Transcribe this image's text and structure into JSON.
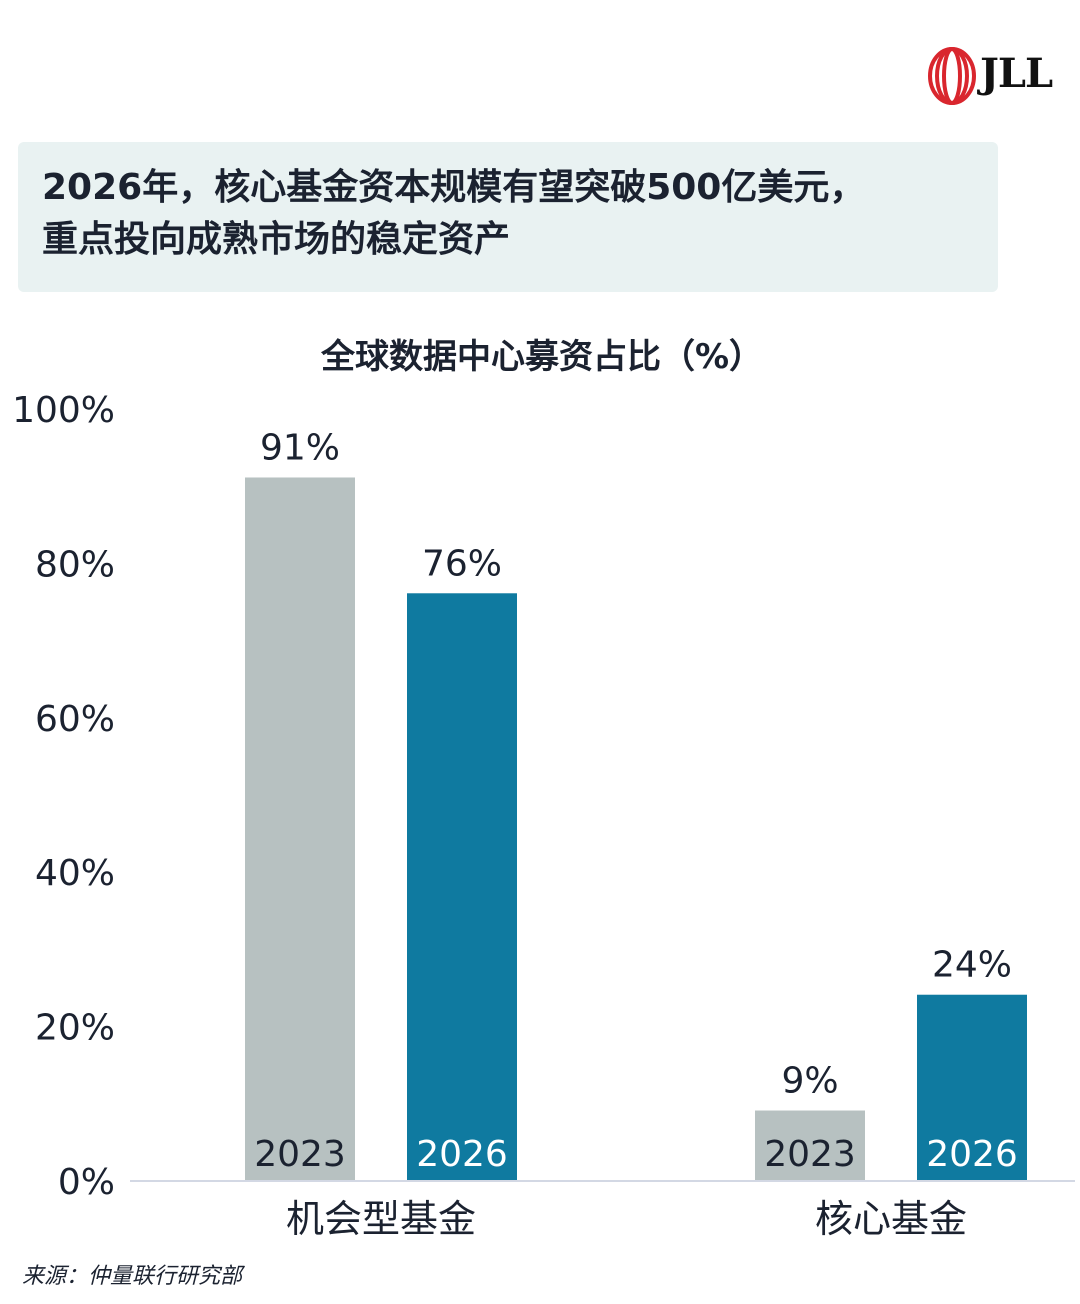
{
  "logo": {
    "text": "JLL",
    "icon": "jll-red-rings-logo"
  },
  "headline": {
    "line1": "2026年，核心基金资本规模有望突破500亿美元，",
    "line2": "重点投向成熟市场的稳定资产"
  },
  "source": "来源：仲量联行研究部",
  "colors": {
    "series_2023": "#b7c1c1",
    "series_2026": "#0f7aa0",
    "headline_bg": "#e9f2f2",
    "logo_red": "#d9262e"
  },
  "chart_data": {
    "type": "bar",
    "title": "全球数据中心募资占比（%）",
    "categories": [
      "机会型基金",
      "核心基金"
    ],
    "series": [
      {
        "name": "2023",
        "values": [
          91,
          9
        ],
        "labels": [
          "91%",
          "9%"
        ]
      },
      {
        "name": "2026",
        "values": [
          76,
          24
        ],
        "labels": [
          "76%",
          "24%"
        ]
      }
    ],
    "yticks": [
      "0%",
      "20%",
      "40%",
      "60%",
      "80%",
      "100%"
    ],
    "ytick_values": [
      0,
      20,
      40,
      60,
      80,
      100
    ],
    "ylim": [
      0,
      100
    ],
    "grid": false,
    "legend": "none (series names printed inside bars)"
  }
}
